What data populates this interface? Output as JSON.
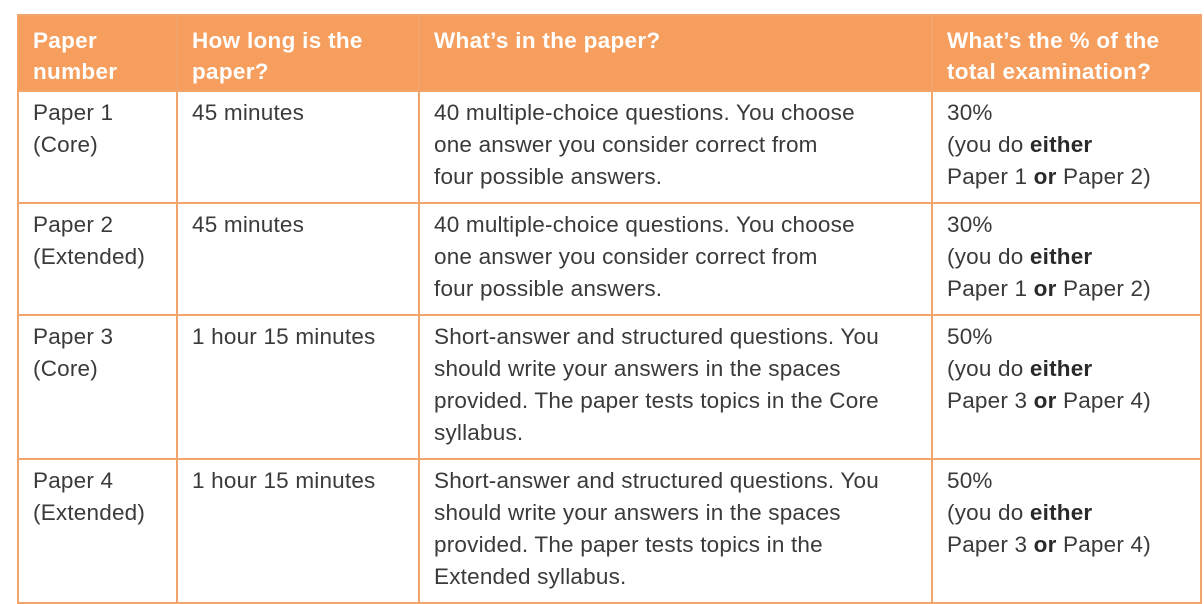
{
  "table": {
    "headers": [
      [
        "Paper",
        "number"
      ],
      [
        "How long is the",
        "paper?"
      ],
      [
        "What’s in the paper?"
      ],
      [
        "What’s the % of the",
        "total examination?"
      ]
    ],
    "rows": [
      {
        "paper": [
          "Paper 1",
          "(Core)"
        ],
        "duration": "45 minutes",
        "content": [
          "40 multiple-choice questions. You choose",
          "one answer you consider correct from",
          "four possible answers."
        ],
        "percent": "30%",
        "note": {
          "pre": "(you do ",
          "either": "either",
          "first": "Paper 1 ",
          "or": "or",
          "second": " Paper 2)"
        }
      },
      {
        "paper": [
          "Paper 2",
          "(Extended)"
        ],
        "duration": "45 minutes",
        "content": [
          "40 multiple-choice questions. You choose",
          "one answer you consider correct from",
          "four possible answers."
        ],
        "percent": "30%",
        "note": {
          "pre": "(you do ",
          "either": "either",
          "first": "Paper 1 ",
          "or": "or",
          "second": " Paper 2)"
        }
      },
      {
        "paper": [
          "Paper 3",
          "(Core)"
        ],
        "duration": "1 hour 15 minutes",
        "content": [
          "Short-answer and structured questions. You",
          "should write your answers in the spaces",
          "provided. The paper tests topics in the Core",
          "syllabus."
        ],
        "percent": "50%",
        "note": {
          "pre": "(you do ",
          "either": "either",
          "first": "Paper 3 ",
          "or": "or",
          "second": " Paper 4)"
        }
      },
      {
        "paper": [
          "Paper 4",
          "(Extended)"
        ],
        "duration": "1 hour 15 minutes",
        "content": [
          "Short-answer and structured questions. You",
          "should write your answers in the spaces",
          "provided. The paper tests topics in the",
          "Extended syllabus."
        ],
        "percent": "50%",
        "note": {
          "pre": "(you do ",
          "either": "either",
          "first": "Paper 3 ",
          "or": "or",
          "second": " Paper 4)"
        }
      }
    ]
  },
  "colors": {
    "header_bg": "#f59e5e",
    "border": "#f3a46b",
    "header_text": "#ffffff",
    "body_text": "#3a3a3a"
  }
}
